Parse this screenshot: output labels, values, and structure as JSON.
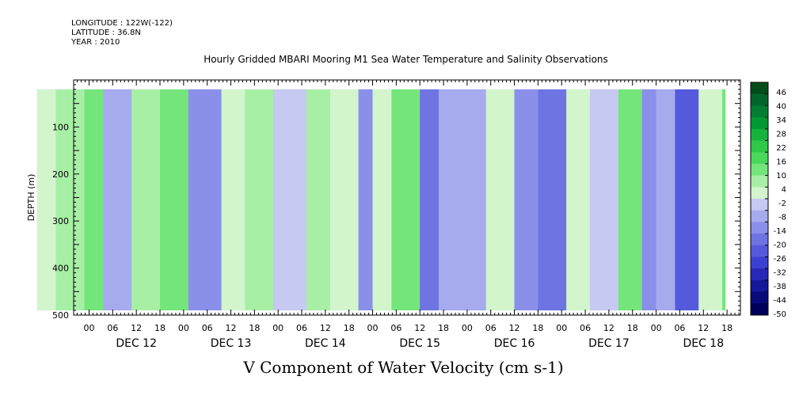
{
  "header": {
    "longitude": "LONGITUDE : 122W(-122)",
    "latitude": "LATITUDE : 36.8N",
    "year": "YEAR : 2010"
  },
  "chart_title": "Hourly Gridded MBARI Mooring M1 Sea Water Temperature and Salinity Observations",
  "variable_title": "V Component of Water Velocity (cm s-1)",
  "chart_data": {
    "type": "heatmap",
    "title": "Hourly Gridded MBARI Mooring M1 Sea Water Temperature and Salinity Observations",
    "xlabel": "V Component of Water Velocity (cm s-1)",
    "ylabel": "DEPTH (m)",
    "y_ticks": [
      "100",
      "200",
      "300",
      "400",
      "500"
    ],
    "x_hour_ticks": [
      "00",
      "06",
      "12",
      "18",
      "00",
      "06",
      "12",
      "18",
      "00",
      "06",
      "12",
      "18",
      "00",
      "06",
      "12",
      "18",
      "00",
      "06",
      "12",
      "18",
      "00",
      "06",
      "12",
      "18",
      "00",
      "06",
      "12",
      "18"
    ],
    "x_day_labels": [
      "DEC 12",
      "DEC 13",
      "DEC 14",
      "DEC 15",
      "DEC 16",
      "DEC 17",
      "DEC 18"
    ],
    "colorbar_labels": [
      "46",
      "40",
      "34",
      "28",
      "22",
      "16",
      "10",
      "4",
      "-2",
      "-8",
      "-14",
      "-20",
      "-26",
      "-32",
      "-38",
      "-44",
      "-50"
    ],
    "colorbar_colors": [
      "#004d1a",
      "#00662a",
      "#007f33",
      "#009933",
      "#16b23e",
      "#2ec94a",
      "#4ad85a",
      "#74e57a",
      "#a8efa6",
      "#d2f5cc",
      "#c6c9f2",
      "#a6abee",
      "#8a90ea",
      "#6e74e2",
      "#5559dc",
      "#3c40d0",
      "#2628b8",
      "#14189a",
      "#080a7a",
      "#00005a"
    ],
    "field_pattern": [
      {
        "day_offset": -0.55,
        "value": 6
      },
      {
        "day_offset": -0.35,
        "value": 10
      },
      {
        "day_offset": -0.05,
        "value": 12
      },
      {
        "day_offset": 0.15,
        "value": -6
      },
      {
        "day_offset": 0.45,
        "value": 8
      },
      {
        "day_offset": 0.75,
        "value": 12
      },
      {
        "day_offset": 1.05,
        "value": -14
      },
      {
        "day_offset": 1.4,
        "value": 4
      },
      {
        "day_offset": 1.65,
        "value": 10
      },
      {
        "day_offset": 1.95,
        "value": -4
      },
      {
        "day_offset": 2.3,
        "value": 10
      },
      {
        "day_offset": 2.55,
        "value": 4
      },
      {
        "day_offset": 2.85,
        "value": -10
      },
      {
        "day_offset": 3.0,
        "value": 4
      },
      {
        "day_offset": 3.2,
        "value": 16
      },
      {
        "day_offset": 3.5,
        "value": -18
      },
      {
        "day_offset": 3.7,
        "value": -8
      },
      {
        "day_offset": 3.95,
        "value": -6
      },
      {
        "day_offset": 4.2,
        "value": 6
      },
      {
        "day_offset": 4.5,
        "value": -12
      },
      {
        "day_offset": 4.75,
        "value": -16
      },
      {
        "day_offset": 5.05,
        "value": 4
      },
      {
        "day_offset": 5.3,
        "value": -4
      },
      {
        "day_offset": 5.6,
        "value": 16
      },
      {
        "day_offset": 5.85,
        "value": -10
      },
      {
        "day_offset": 6.0,
        "value": -8
      },
      {
        "day_offset": 6.2,
        "value": -20
      },
      {
        "day_offset": 6.45,
        "value": 4
      },
      {
        "day_offset": 6.7,
        "value": 14
      }
    ],
    "depth_range": [
      20,
      490
    ],
    "ylim": [
      500,
      0
    ],
    "colorbar_range": [
      -50,
      52
    ]
  }
}
